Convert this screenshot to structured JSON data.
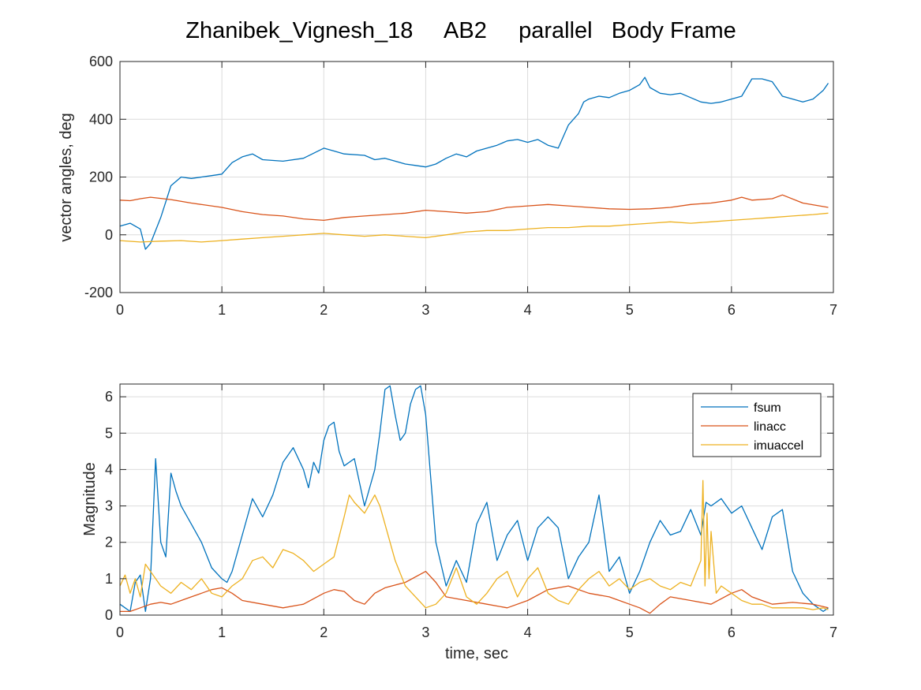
{
  "figure": {
    "title": "Zhanibek_Vignesh_18     AB2     parallel   Body Frame"
  },
  "chart_data": [
    {
      "type": "line",
      "title": "",
      "xlabel": "",
      "ylabel": "vector angles, deg",
      "xlim": [
        0,
        7
      ],
      "ylim": [
        -200,
        600
      ],
      "xticks": [
        "0",
        "1",
        "2",
        "3",
        "4",
        "5",
        "6",
        "7"
      ],
      "yticks": [
        "-200",
        "0",
        "200",
        "400",
        "600"
      ],
      "grid": true,
      "legend": null,
      "colors": [
        "#0072BD",
        "#D95319",
        "#EDB120"
      ],
      "series": [
        {
          "x": [
            0,
            0.1,
            0.2,
            0.25,
            0.3,
            0.4,
            0.5,
            0.6,
            0.7,
            0.8,
            0.9,
            1.0,
            1.1,
            1.2,
            1.3,
            1.4,
            1.6,
            1.8,
            2.0,
            2.1,
            2.2,
            2.4,
            2.5,
            2.6,
            2.8,
            2.9,
            3.0,
            3.1,
            3.2,
            3.3,
            3.4,
            3.5,
            3.6,
            3.7,
            3.8,
            3.9,
            4.0,
            4.1,
            4.2,
            4.3,
            4.4,
            4.5,
            4.55,
            4.6,
            4.7,
            4.8,
            4.9,
            5.0,
            5.1,
            5.15,
            5.2,
            5.3,
            5.4,
            5.5,
            5.6,
            5.7,
            5.8,
            5.9,
            6.0,
            6.1,
            6.2,
            6.3,
            6.4,
            6.5,
            6.6,
            6.7,
            6.8,
            6.9,
            6.95
          ],
          "values": [
            30,
            40,
            20,
            -50,
            -30,
            60,
            170,
            200,
            195,
            200,
            205,
            210,
            250,
            270,
            280,
            260,
            255,
            265,
            300,
            290,
            280,
            275,
            260,
            265,
            245,
            240,
            235,
            245,
            265,
            280,
            270,
            290,
            300,
            310,
            325,
            330,
            320,
            330,
            310,
            300,
            380,
            420,
            460,
            470,
            480,
            475,
            490,
            500,
            520,
            545,
            510,
            490,
            485,
            490,
            475,
            460,
            455,
            460,
            470,
            480,
            540,
            540,
            530,
            480,
            470,
            460,
            470,
            500,
            525
          ]
        },
        {
          "x": [
            0,
            0.1,
            0.2,
            0.3,
            0.5,
            0.7,
            1.0,
            1.2,
            1.4,
            1.6,
            1.8,
            2.0,
            2.2,
            2.4,
            2.6,
            2.8,
            3.0,
            3.2,
            3.4,
            3.6,
            3.8,
            4.0,
            4.2,
            4.4,
            4.6,
            4.8,
            5.0,
            5.2,
            5.4,
            5.6,
            5.8,
            6.0,
            6.1,
            6.2,
            6.4,
            6.5,
            6.7,
            6.95
          ],
          "values": [
            120,
            118,
            125,
            130,
            122,
            110,
            95,
            80,
            70,
            65,
            55,
            50,
            60,
            65,
            70,
            75,
            85,
            80,
            75,
            80,
            95,
            100,
            105,
            100,
            95,
            90,
            88,
            90,
            95,
            105,
            110,
            120,
            130,
            120,
            125,
            138,
            110,
            95
          ]
        },
        {
          "x": [
            0,
            0.2,
            0.4,
            0.6,
            0.8,
            1.0,
            1.2,
            1.4,
            1.6,
            1.8,
            2.0,
            2.2,
            2.4,
            2.6,
            2.8,
            3.0,
            3.2,
            3.4,
            3.6,
            3.8,
            4.0,
            4.2,
            4.4,
            4.6,
            4.8,
            5.0,
            5.2,
            5.4,
            5.6,
            5.8,
            6.0,
            6.2,
            6.4,
            6.6,
            6.8,
            6.95
          ],
          "values": [
            -20,
            -25,
            -22,
            -20,
            -25,
            -20,
            -15,
            -10,
            -5,
            0,
            5,
            0,
            -5,
            0,
            -5,
            -10,
            0,
            10,
            15,
            15,
            20,
            25,
            25,
            30,
            30,
            35,
            40,
            45,
            40,
            45,
            50,
            55,
            60,
            65,
            70,
            75
          ]
        }
      ]
    },
    {
      "type": "line",
      "title": "",
      "xlabel": "time, sec",
      "ylabel": "Magnitude",
      "xlim": [
        0,
        7
      ],
      "ylim": [
        0,
        6.35
      ],
      "xticks": [
        "0",
        "1",
        "2",
        "3",
        "4",
        "5",
        "6",
        "7"
      ],
      "yticks": [
        "0",
        "1",
        "2",
        "3",
        "4",
        "5",
        "6"
      ],
      "grid": true,
      "legend": "top-right",
      "colors": [
        "#0072BD",
        "#D95319",
        "#EDB120"
      ],
      "series": [
        {
          "name": "fsum",
          "x": [
            0,
            0.05,
            0.1,
            0.15,
            0.2,
            0.25,
            0.3,
            0.35,
            0.4,
            0.45,
            0.5,
            0.55,
            0.6,
            0.7,
            0.8,
            0.9,
            1.0,
            1.05,
            1.1,
            1.2,
            1.3,
            1.4,
            1.5,
            1.6,
            1.7,
            1.8,
            1.85,
            1.9,
            1.95,
            2.0,
            2.05,
            2.1,
            2.15,
            2.2,
            2.3,
            2.4,
            2.45,
            2.5,
            2.55,
            2.6,
            2.65,
            2.7,
            2.75,
            2.8,
            2.85,
            2.9,
            2.95,
            3.0,
            3.1,
            3.2,
            3.3,
            3.4,
            3.5,
            3.6,
            3.7,
            3.8,
            3.9,
            4.0,
            4.1,
            4.2,
            4.3,
            4.4,
            4.5,
            4.6,
            4.7,
            4.8,
            4.9,
            5.0,
            5.1,
            5.2,
            5.3,
            5.4,
            5.5,
            5.6,
            5.7,
            5.75,
            5.8,
            5.9,
            6.0,
            6.1,
            6.2,
            6.3,
            6.4,
            6.5,
            6.6,
            6.7,
            6.8,
            6.9,
            6.95
          ],
          "values": [
            0.3,
            0.2,
            0.1,
            0.9,
            1.1,
            0.1,
            1.0,
            4.3,
            2.0,
            1.6,
            3.9,
            3.4,
            3.0,
            2.5,
            2.0,
            1.3,
            1.0,
            0.9,
            1.2,
            2.2,
            3.2,
            2.7,
            3.3,
            4.2,
            4.6,
            4.0,
            3.5,
            4.2,
            3.9,
            4.8,
            5.2,
            5.3,
            4.5,
            4.1,
            4.3,
            3.0,
            3.5,
            4.0,
            5.0,
            6.2,
            6.3,
            5.5,
            4.8,
            5.0,
            5.8,
            6.2,
            6.3,
            5.5,
            2.0,
            0.8,
            1.5,
            0.9,
            2.5,
            3.1,
            1.5,
            2.2,
            2.6,
            1.5,
            2.4,
            2.7,
            2.4,
            1.0,
            1.6,
            2.0,
            3.3,
            1.2,
            1.6,
            0.6,
            1.2,
            2.0,
            2.6,
            2.2,
            2.3,
            2.9,
            2.2,
            3.1,
            3.0,
            3.2,
            2.8,
            3.0,
            2.4,
            1.8,
            2.7,
            2.9,
            1.2,
            0.6,
            0.3,
            0.1,
            0.2
          ]
        },
        {
          "name": "linacc",
          "x": [
            0,
            0.1,
            0.2,
            0.3,
            0.4,
            0.5,
            0.6,
            0.7,
            0.8,
            0.9,
            1.0,
            1.1,
            1.2,
            1.4,
            1.6,
            1.8,
            2.0,
            2.1,
            2.2,
            2.3,
            2.4,
            2.5,
            2.6,
            2.8,
            3.0,
            3.1,
            3.2,
            3.4,
            3.6,
            3.8,
            4.0,
            4.2,
            4.4,
            4.6,
            4.8,
            5.0,
            5.1,
            5.2,
            5.3,
            5.4,
            5.6,
            5.8,
            6.0,
            6.1,
            6.2,
            6.4,
            6.6,
            6.8,
            6.95
          ],
          "values": [
            0.1,
            0.1,
            0.2,
            0.3,
            0.35,
            0.3,
            0.4,
            0.5,
            0.6,
            0.7,
            0.75,
            0.6,
            0.4,
            0.3,
            0.2,
            0.3,
            0.6,
            0.7,
            0.65,
            0.4,
            0.3,
            0.6,
            0.75,
            0.9,
            1.2,
            0.9,
            0.5,
            0.4,
            0.3,
            0.2,
            0.4,
            0.7,
            0.8,
            0.6,
            0.5,
            0.3,
            0.2,
            0.05,
            0.3,
            0.5,
            0.4,
            0.3,
            0.6,
            0.7,
            0.5,
            0.3,
            0.35,
            0.3,
            0.2
          ]
        },
        {
          "name": "imuaccel",
          "x": [
            0,
            0.05,
            0.1,
            0.15,
            0.2,
            0.25,
            0.3,
            0.35,
            0.4,
            0.5,
            0.6,
            0.7,
            0.8,
            0.9,
            1.0,
            1.1,
            1.2,
            1.3,
            1.4,
            1.5,
            1.6,
            1.7,
            1.8,
            1.9,
            2.0,
            2.1,
            2.2,
            2.25,
            2.3,
            2.4,
            2.5,
            2.55,
            2.6,
            2.7,
            2.8,
            2.9,
            3.0,
            3.1,
            3.2,
            3.3,
            3.4,
            3.5,
            3.6,
            3.7,
            3.8,
            3.9,
            4.0,
            4.1,
            4.2,
            4.3,
            4.4,
            4.5,
            4.6,
            4.7,
            4.8,
            4.9,
            5.0,
            5.1,
            5.2,
            5.3,
            5.4,
            5.5,
            5.6,
            5.7,
            5.72,
            5.74,
            5.76,
            5.78,
            5.8,
            5.85,
            5.9,
            6.0,
            6.1,
            6.2,
            6.3,
            6.4,
            6.5,
            6.6,
            6.7,
            6.8,
            6.9,
            6.95
          ],
          "values": [
            0.8,
            1.1,
            0.6,
            1.0,
            0.5,
            1.4,
            1.2,
            1.0,
            0.8,
            0.6,
            0.9,
            0.7,
            1.0,
            0.6,
            0.5,
            0.8,
            1.0,
            1.5,
            1.6,
            1.3,
            1.8,
            1.7,
            1.5,
            1.2,
            1.4,
            1.6,
            2.7,
            3.3,
            3.1,
            2.8,
            3.3,
            3.0,
            2.5,
            1.5,
            0.8,
            0.5,
            0.2,
            0.3,
            0.6,
            1.3,
            0.5,
            0.3,
            0.6,
            1.0,
            1.2,
            0.5,
            1.0,
            1.3,
            0.6,
            0.4,
            0.3,
            0.7,
            1.0,
            1.2,
            0.8,
            1.0,
            0.7,
            0.9,
            1.0,
            0.8,
            0.7,
            0.9,
            0.8,
            1.5,
            3.7,
            0.8,
            2.8,
            1.0,
            2.3,
            0.6,
            0.8,
            0.6,
            0.4,
            0.3,
            0.3,
            0.2,
            0.2,
            0.2,
            0.2,
            0.15,
            0.2,
            0.15
          ]
        }
      ]
    }
  ]
}
